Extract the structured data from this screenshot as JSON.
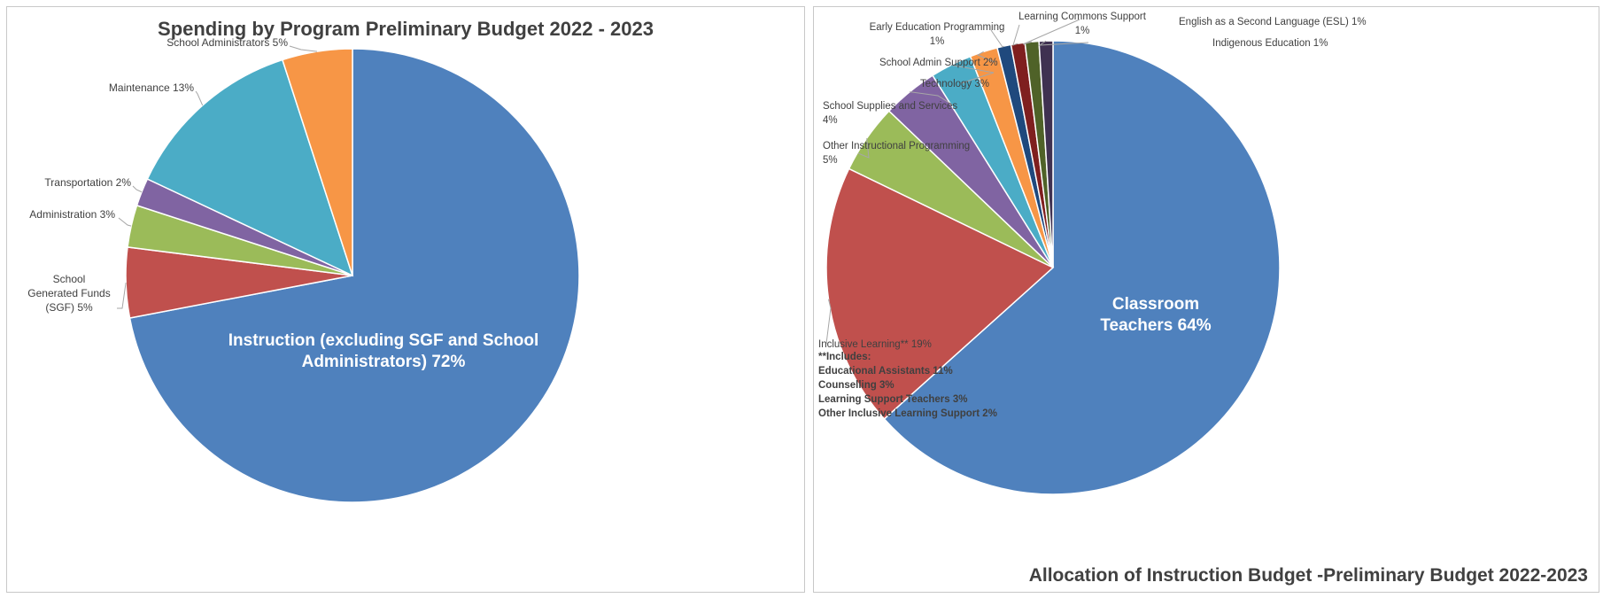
{
  "chart_data": [
    {
      "type": "pie",
      "title": "Spending by Program Preliminary Budget 2022 - 2023",
      "slices": [
        {
          "label": "Instruction (excluding SGF and School Administrators) 72%",
          "value": 72,
          "color": "#4F81BD"
        },
        {
          "label": "School Generated Funds (SGF) 5%",
          "value": 5,
          "color": "#C0504D"
        },
        {
          "label": "Administration 3%",
          "value": 3,
          "color": "#9BBB59"
        },
        {
          "label": "Transportation 2%",
          "value": 2,
          "color": "#8064A2"
        },
        {
          "label": "Maintenance 13%",
          "value": 13,
          "color": "#4BACC6"
        },
        {
          "label": "School Administrators 5%",
          "value": 5,
          "color": "#F79646"
        }
      ]
    },
    {
      "type": "pie",
      "title": "Allocation of Instruction Budget -Preliminary Budget 2022-2023",
      "slices": [
        {
          "label": "Classroom Teachers 64%",
          "value": 64,
          "color": "#4F81BD"
        },
        {
          "label": "Inclusive Learning** 19%",
          "value": 19,
          "color": "#C0504D"
        },
        {
          "label": "Other Instructional Programming 5%",
          "value": 5,
          "color": "#9BBB59"
        },
        {
          "label": "School Supplies and Services 4%",
          "value": 4,
          "color": "#8064A2"
        },
        {
          "label": "Technology 3%",
          "value": 3,
          "color": "#4BACC6"
        },
        {
          "label": "School Admin Support 2%",
          "value": 2,
          "color": "#F79646"
        },
        {
          "label": "Early Education Programming 1%",
          "value": 1,
          "color": "#1F497D"
        },
        {
          "label": "Learning Commons Support 1%",
          "value": 1,
          "color": "#7F1F1F"
        },
        {
          "label": "English as a Second Language (ESL) 1%",
          "value": 1,
          "color": "#4F6228"
        },
        {
          "label": "Indigenous Education 1%",
          "value": 1,
          "color": "#3F3151"
        }
      ],
      "note": {
        "heading": "**Includes:",
        "items": [
          "Educational Assistants 11%",
          "Counselling 3%",
          "Learning Support Teachers 3%",
          "Other Inclusive Learning Support 2%"
        ]
      }
    }
  ]
}
